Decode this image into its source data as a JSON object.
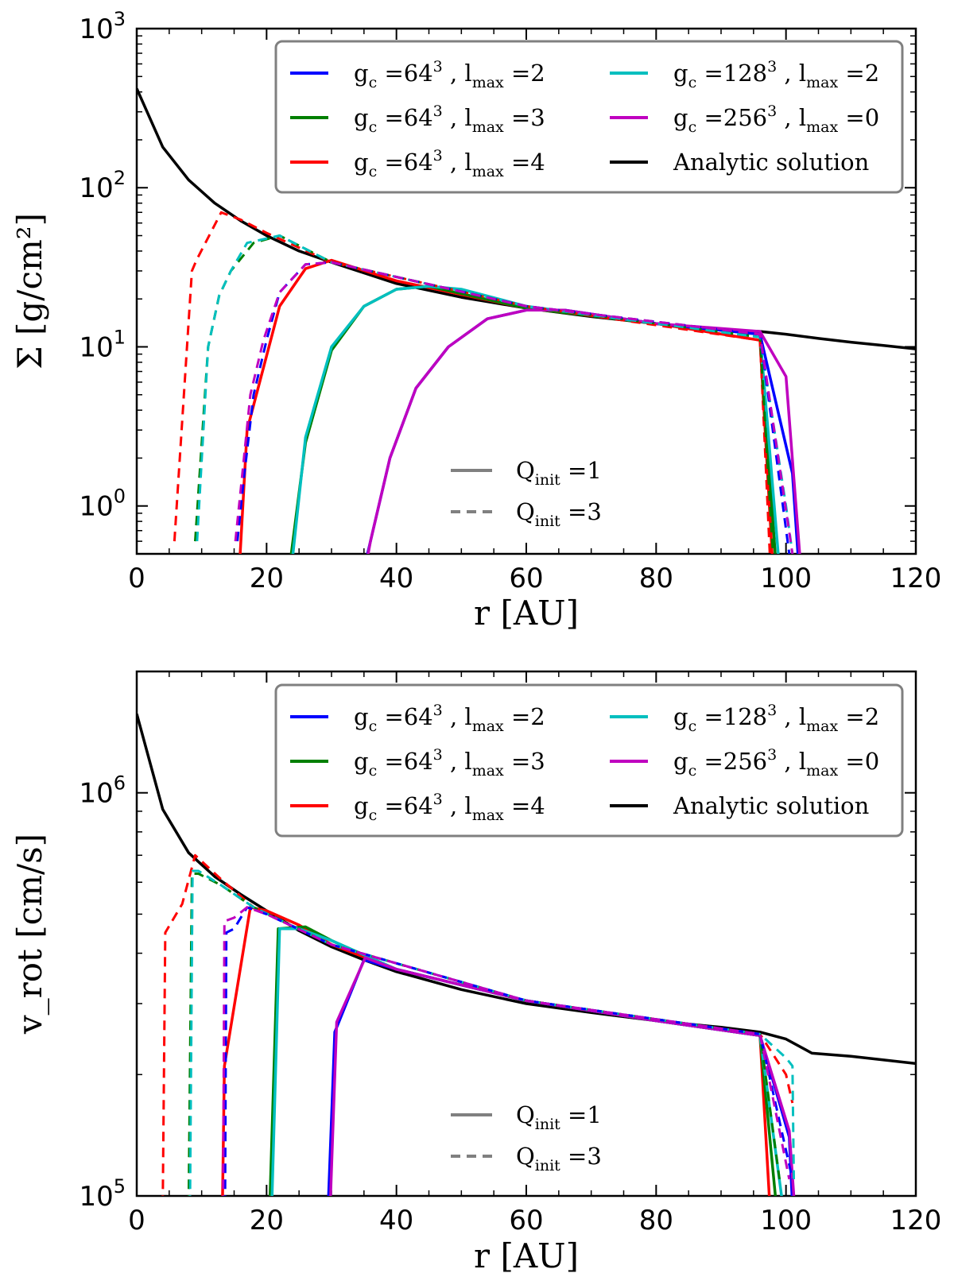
{
  "chart_data": [
    {
      "type": "line",
      "yscale": "log",
      "xlim": [
        0,
        120
      ],
      "ylim": [
        0.5,
        1000
      ],
      "xlabel": "r [AU]",
      "ylabel": "Σ [g/cm²]",
      "x_ticks": [
        0,
        20,
        40,
        60,
        80,
        100,
        120
      ],
      "y_ticks": [
        {
          "value": 1,
          "exp": "0"
        },
        {
          "value": 10,
          "exp": "1"
        },
        {
          "value": 100,
          "exp": "2"
        },
        {
          "value": 1000,
          "exp": "3"
        }
      ],
      "legend": {
        "position": "top-right",
        "entries": [
          {
            "color": "#0000ff",
            "g": "64",
            "l": "2"
          },
          {
            "color": "#007f00",
            "g": "64",
            "l": "3"
          },
          {
            "color": "#ff0000",
            "g": "64",
            "l": "4"
          },
          {
            "color": "#00bfbf",
            "g": "128",
            "l": "2"
          },
          {
            "color": "#bf00bf",
            "g": "256",
            "l": "0"
          },
          {
            "color": "#000000",
            "text": "Analytic solution"
          }
        ]
      },
      "style_legend": {
        "position": "lower-center",
        "entries": [
          {
            "style": "solid",
            "q": "1"
          },
          {
            "style": "dashed",
            "q": "3"
          }
        ]
      },
      "series": [
        {
          "name": "Analytic solution",
          "color": "#000000",
          "dash": false,
          "x": [
            0,
            4,
            8,
            12,
            16,
            20,
            25,
            30,
            40,
            50,
            60,
            70,
            80,
            90,
            96,
            100,
            105,
            110,
            115,
            120
          ],
          "y": [
            420,
            180,
            112,
            80,
            62,
            50,
            40,
            34,
            25,
            20.5,
            17.5,
            15.5,
            14,
            12.8,
            12.5,
            12,
            11.3,
            10.7,
            10.2,
            9.7
          ]
        },
        {
          "name": "g64 l4 Q1",
          "color": "#ff0000",
          "dash": false,
          "x": [
            15.8,
            17,
            22,
            26,
            30,
            40,
            60,
            80,
            96,
            98
          ],
          "y": [
            0.4,
            3,
            18,
            31,
            35,
            26,
            17.5,
            14,
            11,
            0.4
          ]
        },
        {
          "name": "g64 l3 Q1",
          "color": "#007f00",
          "dash": false,
          "x": [
            23.5,
            26,
            30,
            35,
            40,
            45,
            60,
            80,
            96,
            98.5
          ],
          "y": [
            0.4,
            2.5,
            9.5,
            18,
            23,
            24,
            17.5,
            14,
            12,
            0.4
          ]
        },
        {
          "name": "g128 l2 Q1",
          "color": "#00bfbf",
          "dash": false,
          "x": [
            23.8,
            26,
            30,
            35,
            40,
            45,
            50,
            60,
            80,
            96,
            99
          ],
          "y": [
            0.4,
            2.7,
            10,
            18,
            23,
            24,
            23,
            18,
            14,
            12,
            0.4
          ]
        },
        {
          "name": "g64 l2 Q1",
          "color": "#0000ff",
          "dash": false,
          "x": [
            35,
            36,
            39,
            43,
            48,
            54,
            60,
            66,
            80,
            96,
            101,
            102
          ],
          "y": [
            0.4,
            0.6,
            2,
            5.5,
            10,
            15,
            17,
            17,
            14,
            12,
            1.6,
            0.4
          ]
        },
        {
          "name": "g256 l0 Q1",
          "color": "#bf00bf",
          "dash": false,
          "x": [
            35.2,
            36,
            39,
            43,
            48,
            54,
            60,
            66,
            80,
            96,
            100,
            102.3
          ],
          "y": [
            0.4,
            0.6,
            2,
            5.5,
            10,
            15,
            17,
            17,
            14,
            12.5,
            6.5,
            0.4
          ]
        },
        {
          "name": "g64 l4 Q3",
          "color": "#ff0000",
          "dash": true,
          "x": [
            5.8,
            8.5,
            9.2,
            13,
            16,
            20,
            30,
            60,
            96,
            97.5
          ],
          "y": [
            0.6,
            30,
            35,
            70,
            63,
            52,
            34,
            18,
            11,
            0.5
          ]
        },
        {
          "name": "g64 l3 Q3",
          "color": "#007f00",
          "dash": true,
          "x": [
            9,
            11,
            12.7,
            14.5,
            18,
            22,
            30,
            60,
            96,
            98
          ],
          "y": [
            0.6,
            10,
            21,
            30,
            45,
            50,
            34,
            18,
            11.5,
            0.5
          ]
        },
        {
          "name": "g128 l2 Q3",
          "color": "#00bfbf",
          "dash": true,
          "x": [
            9.3,
            11,
            12.7,
            14.5,
            17,
            22,
            30,
            60,
            96,
            100,
            101
          ],
          "y": [
            0.6,
            10,
            21,
            30,
            45,
            50,
            34,
            18,
            11.5,
            1,
            0.5
          ]
        },
        {
          "name": "g64 l2 Q3",
          "color": "#0000ff",
          "dash": true,
          "x": [
            15.5,
            16.5,
            18,
            20,
            22,
            26,
            30,
            60,
            96,
            100.5
          ],
          "y": [
            0.6,
            1.5,
            5,
            11,
            22,
            33,
            34,
            18,
            12,
            0.5
          ]
        },
        {
          "name": "g256 l0 Q3",
          "color": "#bf00bf",
          "dash": true,
          "x": [
            15.2,
            16.2,
            17.5,
            19.5,
            22,
            26,
            30,
            60,
            96,
            101
          ],
          "y": [
            0.6,
            1.5,
            5,
            11,
            22,
            33,
            34,
            18,
            12,
            0.5
          ]
        }
      ]
    },
    {
      "type": "line",
      "yscale": "log",
      "xlim": [
        0,
        120
      ],
      "ylim": [
        100000,
        2000000
      ],
      "xlabel": "r [AU]",
      "ylabel": "v_rot [cm/s]",
      "x_ticks": [
        0,
        20,
        40,
        60,
        80,
        100,
        120
      ],
      "y_ticks": [
        {
          "value": 100000,
          "exp": "5"
        },
        {
          "value": 1000000,
          "exp": "6"
        }
      ],
      "legend": {
        "position": "top-right",
        "entries": [
          {
            "color": "#0000ff",
            "g": "64",
            "l": "2"
          },
          {
            "color": "#007f00",
            "g": "64",
            "l": "3"
          },
          {
            "color": "#ff0000",
            "g": "64",
            "l": "4"
          },
          {
            "color": "#00bfbf",
            "g": "128",
            "l": "2"
          },
          {
            "color": "#bf00bf",
            "g": "256",
            "l": "0"
          },
          {
            "color": "#000000",
            "text": "Analytic solution"
          }
        ]
      },
      "style_legend": {
        "position": "lower-center",
        "entries": [
          {
            "style": "solid",
            "q": "1"
          },
          {
            "style": "dashed",
            "q": "3"
          }
        ]
      },
      "series": [
        {
          "name": "Analytic solution",
          "color": "#000000",
          "dash": false,
          "x": [
            0,
            4,
            8,
            12,
            16,
            20,
            25,
            30,
            35,
            40,
            50,
            60,
            70,
            80,
            90,
            96,
            100,
            104,
            110,
            120
          ],
          "y": [
            1570000,
            910000,
            710000,
            620000,
            560000,
            510000,
            455000,
            415000,
            385000,
            360000,
            325000,
            300000,
            285000,
            272000,
            262000,
            255000,
            245000,
            226000,
            222000,
            213000
          ]
        },
        {
          "name": "g64 l4 Q1",
          "color": "#ff0000",
          "dash": false,
          "x": [
            13.2,
            13.5,
            17.5,
            20,
            25,
            30,
            40,
            60,
            80,
            96,
            97.5
          ],
          "y": [
            95000,
            210000,
            520000,
            510000,
            470000,
            420000,
            365000,
            305000,
            272000,
            250000,
            95000
          ]
        },
        {
          "name": "g64 l3 Q1",
          "color": "#007f00",
          "dash": false,
          "x": [
            20.5,
            21.8,
            26,
            30,
            40,
            60,
            80,
            96,
            98.5
          ],
          "y": [
            95000,
            460000,
            465000,
            430000,
            365000,
            305000,
            272000,
            250000,
            95000
          ]
        },
        {
          "name": "g128 l2 Q1",
          "color": "#00bfbf",
          "dash": false,
          "x": [
            20.8,
            22,
            25,
            30,
            40,
            60,
            80,
            96,
            99.5
          ],
          "y": [
            95000,
            460000,
            460000,
            430000,
            365000,
            305000,
            272000,
            250000,
            95000
          ]
        },
        {
          "name": "g64 l2 Q1",
          "color": "#0000ff",
          "dash": false,
          "x": [
            29.5,
            30.5,
            35,
            40,
            60,
            80,
            96,
            100.5,
            101
          ],
          "y": [
            95000,
            255000,
            385000,
            365000,
            305000,
            272000,
            250000,
            140000,
            95000
          ]
        },
        {
          "name": "g256 l0 Q1",
          "color": "#bf00bf",
          "dash": false,
          "x": [
            29.8,
            30.8,
            35.2,
            40,
            60,
            80,
            96,
            100.5,
            101.3
          ],
          "y": [
            95000,
            270000,
            390000,
            365000,
            305000,
            272000,
            250000,
            145000,
            95000
          ]
        },
        {
          "name": "g64 l4 Q3",
          "color": "#ff0000",
          "dash": true,
          "x": [
            4,
            4.4,
            7,
            9,
            13,
            18,
            30,
            60,
            96,
            100,
            101
          ],
          "y": [
            95000,
            450000,
            530000,
            700000,
            610000,
            520000,
            420000,
            305000,
            252000,
            200000,
            170000
          ]
        },
        {
          "name": "g64 l3 Q3",
          "color": "#007f00",
          "dash": true,
          "x": [
            8,
            8.5,
            9.5,
            13,
            18,
            30,
            60,
            96,
            99
          ],
          "y": [
            95000,
            630000,
            630000,
            590000,
            520000,
            420000,
            305000,
            252000,
            110000
          ]
        },
        {
          "name": "g128 l2 Q3",
          "color": "#00bfbf",
          "dash": true,
          "x": [
            8.2,
            8.6,
            9.5,
            13,
            18,
            30,
            60,
            96,
            100,
            101,
            101.2
          ],
          "y": [
            95000,
            640000,
            640000,
            590000,
            520000,
            420000,
            305000,
            252000,
            220000,
            210000,
            110000
          ]
        },
        {
          "name": "g64 l2 Q3",
          "color": "#0000ff",
          "dash": true,
          "x": [
            13.6,
            13.8,
            15,
            17,
            20,
            30,
            60,
            96,
            101
          ],
          "y": [
            95000,
            450000,
            460000,
            520000,
            500000,
            420000,
            305000,
            252000,
            110000
          ]
        },
        {
          "name": "g256 l0 Q3",
          "color": "#bf00bf",
          "dash": true,
          "x": [
            13.3,
            13.5,
            15,
            17,
            20,
            30,
            60,
            96,
            100.5
          ],
          "y": [
            95000,
            480000,
            490000,
            520000,
            500000,
            420000,
            305000,
            252000,
            110000
          ]
        }
      ]
    }
  ]
}
